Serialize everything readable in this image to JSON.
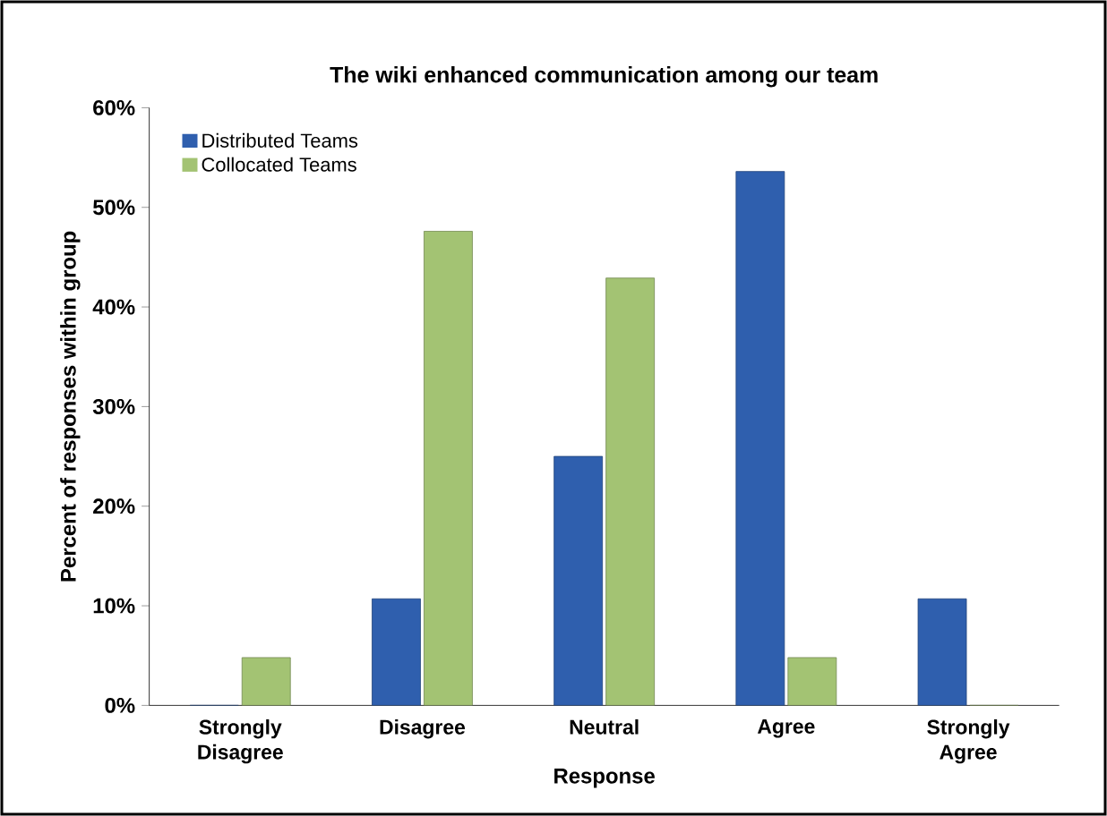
{
  "chart_data": {
    "type": "bar",
    "title": "The wiki enhanced communication among our team",
    "xlabel": "Response",
    "ylabel": "Percent of responses within group",
    "categories": [
      "Strongly Disagree",
      "Disagree",
      "Neutral",
      "Agree",
      "Strongly Agree"
    ],
    "series": [
      {
        "name": "Distributed Teams",
        "color": "#2f5fae",
        "values": [
          0,
          10.7,
          25,
          53.6,
          10.7
        ]
      },
      {
        "name": "Collocated Teams",
        "color": "#a3c373",
        "values": [
          4.8,
          47.6,
          42.9,
          4.8,
          0
        ]
      }
    ],
    "ylim": [
      0,
      60
    ],
    "yticks": [
      {
        "value": 0,
        "label": "0%"
      },
      {
        "value": 10,
        "label": "10%"
      },
      {
        "value": 20,
        "label": "20%"
      },
      {
        "value": 30,
        "label": "30%"
      },
      {
        "value": 40,
        "label": "40%"
      },
      {
        "value": 50,
        "label": "50%"
      },
      {
        "value": 60,
        "label": "60%"
      }
    ],
    "grid": false,
    "legend": "top left"
  }
}
